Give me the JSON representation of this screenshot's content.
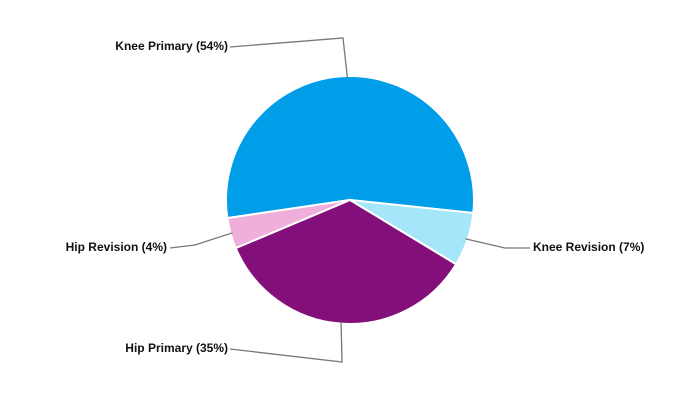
{
  "chart_data": {
    "type": "pie",
    "values": [
      54,
      7,
      35,
      4
    ],
    "value_labels": [
      "Knee Primary (54%)",
      "Knee Revision (7%)",
      "Hip Primary (35%)",
      "Hip Revision (4%)"
    ],
    "colors": [
      "#009de9",
      "#a6e6fb",
      "#820f7a",
      "#f0aedc"
    ]
  }
}
